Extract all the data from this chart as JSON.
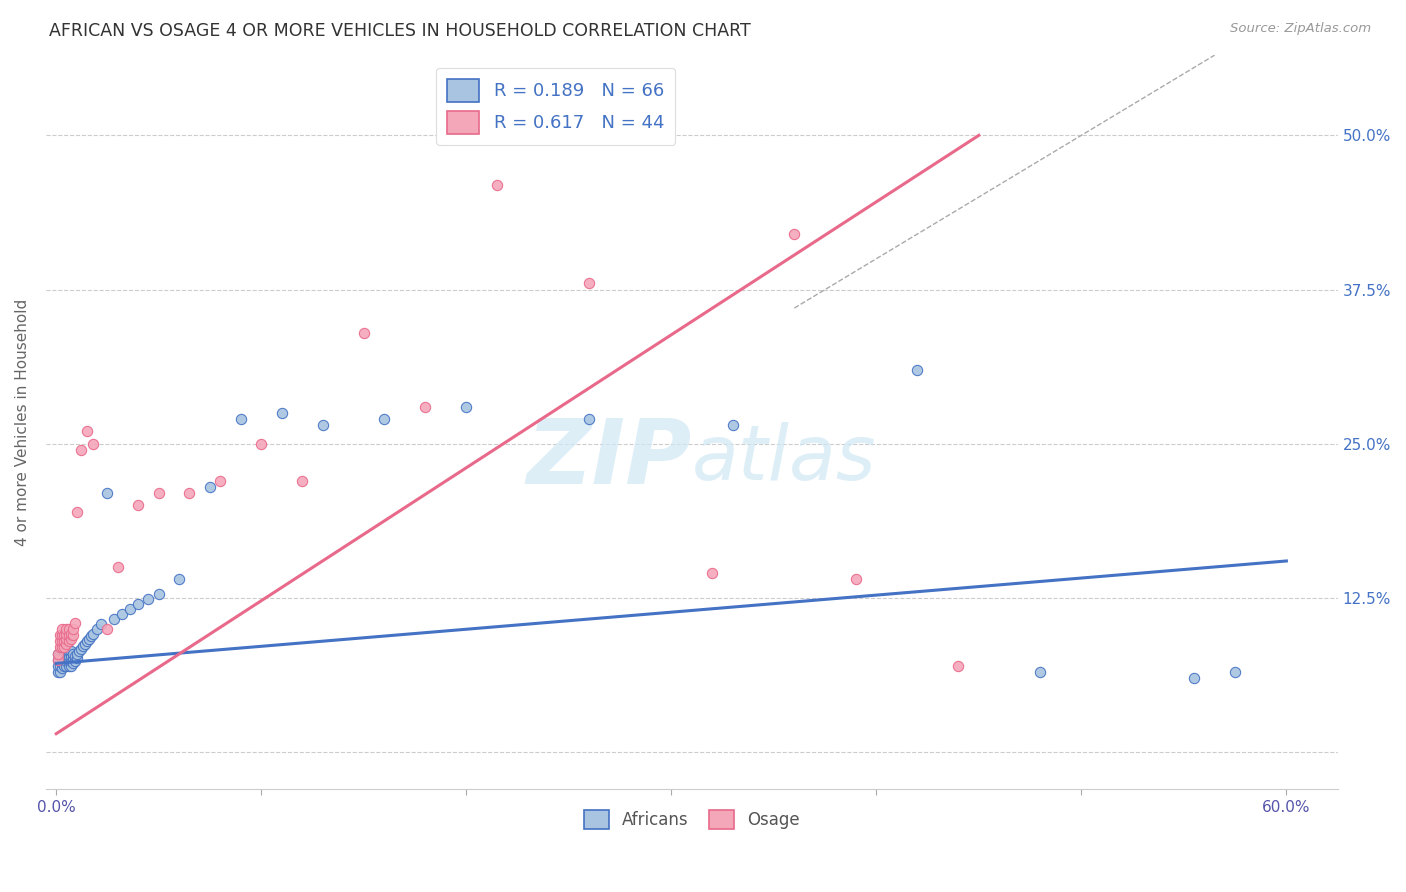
{
  "title": "AFRICAN VS OSAGE 4 OR MORE VEHICLES IN HOUSEHOLD CORRELATION CHART",
  "source": "Source: ZipAtlas.com",
  "ylabel": "4 or more Vehicles in Household",
  "xlim": [
    -0.005,
    0.625
  ],
  "ylim": [
    -0.03,
    0.565
  ],
  "xticks": [
    0.0,
    0.1,
    0.2,
    0.3,
    0.4,
    0.5,
    0.6
  ],
  "xticklabels": [
    "0.0%",
    "",
    "",
    "",
    "",
    "",
    "60.0%"
  ],
  "yticks": [
    0.0,
    0.125,
    0.25,
    0.375,
    0.5
  ],
  "ytick_labels_right": [
    "",
    "12.5%",
    "25.0%",
    "37.5%",
    "50.0%"
  ],
  "african_color": "#a8c4e0",
  "osage_color": "#f4a7b9",
  "african_line_color": "#4472c4",
  "osage_line_color": "#e8698a",
  "watermark_color": "#d0e8f5",
  "african_line_x0": 0.0,
  "african_line_y0": 0.072,
  "african_line_x1": 0.6,
  "african_line_y1": 0.155,
  "osage_line_x0": 0.0,
  "osage_line_y0": 0.015,
  "osage_line_x1": 0.45,
  "osage_line_y1": 0.5,
  "ref_line_x0": 0.36,
  "ref_line_y0": 0.36,
  "ref_line_x1": 0.565,
  "ref_line_y1": 0.565,
  "african_x": [
    0.001,
    0.001,
    0.001,
    0.001,
    0.002,
    0.002,
    0.002,
    0.002,
    0.003,
    0.003,
    0.003,
    0.003,
    0.003,
    0.004,
    0.004,
    0.004,
    0.004,
    0.005,
    0.005,
    0.005,
    0.005,
    0.006,
    0.006,
    0.006,
    0.006,
    0.007,
    0.007,
    0.007,
    0.007,
    0.008,
    0.008,
    0.008,
    0.009,
    0.009,
    0.01,
    0.01,
    0.011,
    0.012,
    0.013,
    0.014,
    0.015,
    0.016,
    0.017,
    0.018,
    0.02,
    0.022,
    0.025,
    0.028,
    0.032,
    0.036,
    0.04,
    0.045,
    0.05,
    0.06,
    0.075,
    0.09,
    0.11,
    0.13,
    0.16,
    0.2,
    0.26,
    0.33,
    0.42,
    0.48,
    0.555,
    0.575
  ],
  "african_y": [
    0.065,
    0.07,
    0.075,
    0.08,
    0.065,
    0.07,
    0.075,
    0.08,
    0.068,
    0.072,
    0.076,
    0.08,
    0.084,
    0.07,
    0.074,
    0.078,
    0.082,
    0.07,
    0.074,
    0.078,
    0.082,
    0.07,
    0.074,
    0.078,
    0.082,
    0.07,
    0.074,
    0.078,
    0.082,
    0.072,
    0.076,
    0.08,
    0.074,
    0.078,
    0.076,
    0.08,
    0.082,
    0.084,
    0.086,
    0.088,
    0.09,
    0.092,
    0.094,
    0.096,
    0.1,
    0.104,
    0.21,
    0.108,
    0.112,
    0.116,
    0.12,
    0.124,
    0.128,
    0.14,
    0.215,
    0.27,
    0.275,
    0.265,
    0.27,
    0.28,
    0.27,
    0.265,
    0.31,
    0.065,
    0.06,
    0.065
  ],
  "osage_x": [
    0.001,
    0.001,
    0.002,
    0.002,
    0.002,
    0.003,
    0.003,
    0.003,
    0.003,
    0.004,
    0.004,
    0.004,
    0.005,
    0.005,
    0.005,
    0.005,
    0.006,
    0.006,
    0.006,
    0.007,
    0.007,
    0.008,
    0.008,
    0.009,
    0.01,
    0.012,
    0.015,
    0.018,
    0.025,
    0.03,
    0.04,
    0.05,
    0.065,
    0.08,
    0.1,
    0.12,
    0.15,
    0.18,
    0.215,
    0.26,
    0.32,
    0.36,
    0.39,
    0.44
  ],
  "osage_y": [
    0.075,
    0.08,
    0.085,
    0.09,
    0.095,
    0.085,
    0.09,
    0.095,
    0.1,
    0.085,
    0.09,
    0.095,
    0.088,
    0.092,
    0.096,
    0.1,
    0.09,
    0.095,
    0.1,
    0.092,
    0.096,
    0.095,
    0.1,
    0.105,
    0.195,
    0.245,
    0.26,
    0.25,
    0.1,
    0.15,
    0.2,
    0.21,
    0.21,
    0.22,
    0.25,
    0.22,
    0.34,
    0.28,
    0.46,
    0.38,
    0.145,
    0.42,
    0.14,
    0.07
  ]
}
